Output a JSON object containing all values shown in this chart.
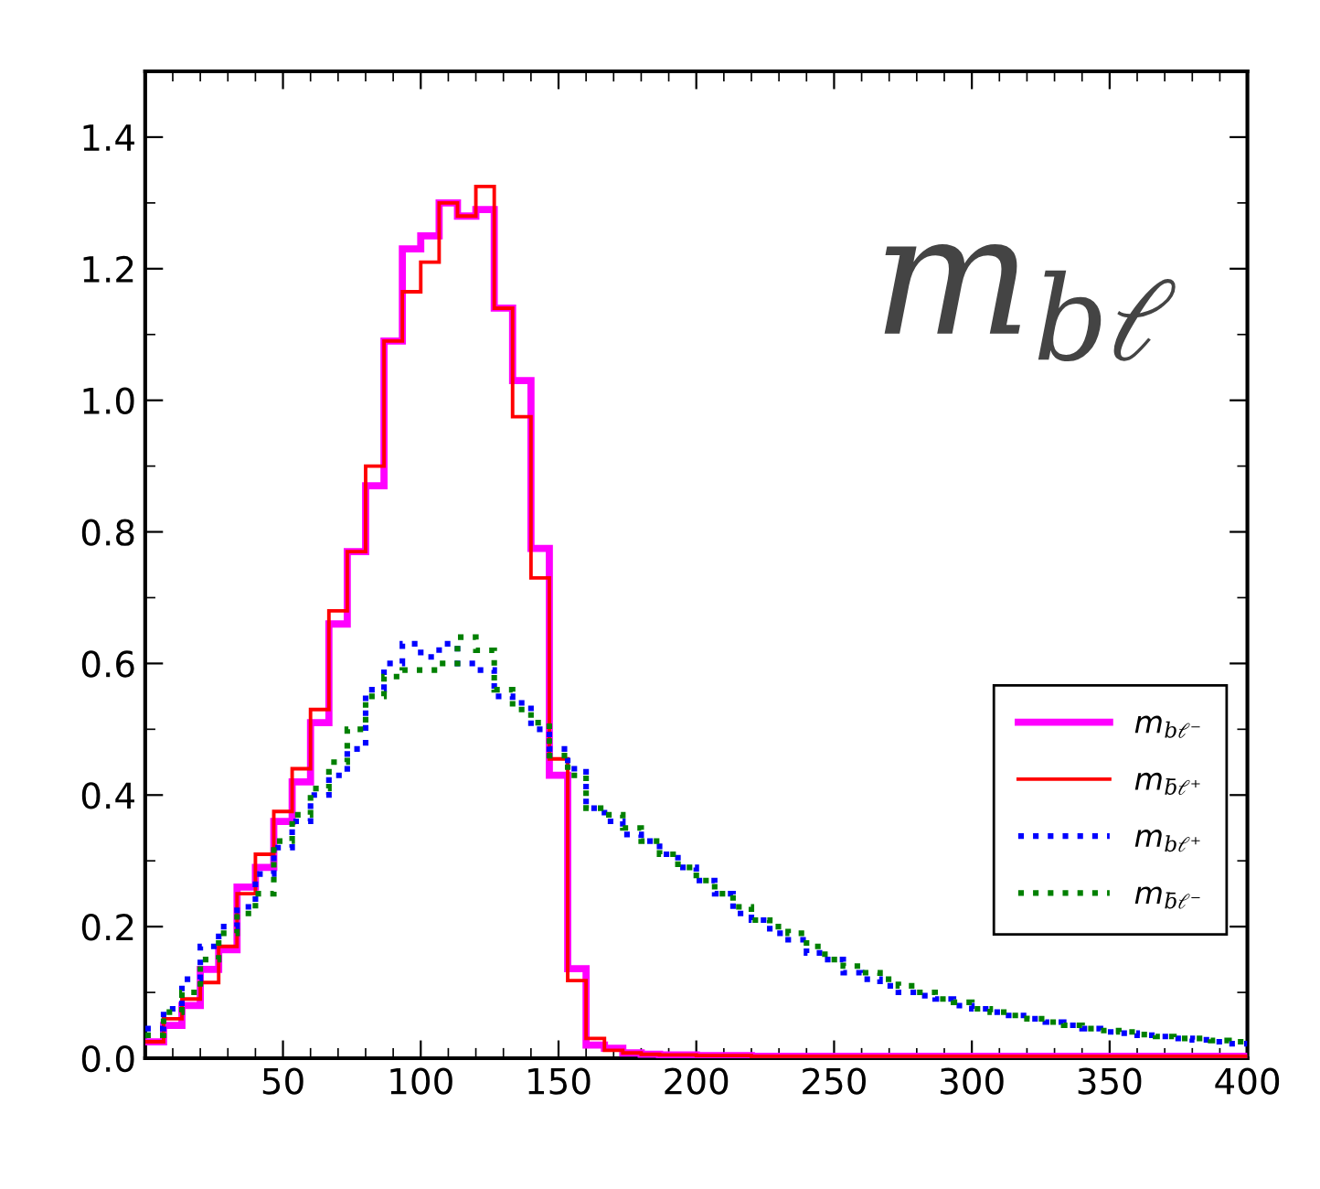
{
  "chart_data": {
    "type": "histogram",
    "bins": [
      0,
      6.67,
      13.33,
      20,
      26.67,
      33.33,
      40,
      46.67,
      53.33,
      60,
      66.67,
      73.33,
      80,
      86.67,
      93.33,
      100,
      106.67,
      113.33,
      120,
      126.67,
      133.33,
      140,
      146.67,
      153.33,
      160,
      166.67,
      173.33,
      180,
      186.67,
      193.33,
      200,
      206.67,
      213.33,
      220,
      226.67,
      233.33,
      240,
      246.67,
      253.33,
      260,
      266.67,
      273.33,
      280,
      286.67,
      293.33,
      300,
      306.67,
      313.33,
      320,
      326.67,
      333.33,
      340,
      346.67,
      353.33,
      360,
      366.67,
      373.33,
      380,
      386.67,
      393.33,
      400
    ],
    "series": [
      {
        "name": "m$_{bℓ⁻}$",
        "color": "#ff00ff",
        "line_style": "solid",
        "values": [
          0.025,
          0.05,
          0.08,
          0.135,
          0.165,
          0.26,
          0.29,
          0.36,
          0.42,
          0.51,
          0.66,
          0.77,
          0.87,
          1.09,
          1.23,
          1.25,
          1.3,
          1.28,
          1.29,
          1.14,
          1.03,
          0.775,
          0.43,
          0.136,
          0.02,
          0.015,
          0.008,
          0.006,
          0.005,
          0.005,
          0.004,
          0.004,
          0.004,
          0.003,
          0.003,
          0.003,
          0.003,
          0.003,
          0.003,
          0.003,
          0.003,
          0.003,
          0.003,
          0.003,
          0.003,
          0.003,
          0.003,
          0.003,
          0.003,
          0.003,
          0.003,
          0.003,
          0.003,
          0.003,
          0.003,
          0.003,
          0.003,
          0.003,
          0.003,
          0.003
        ]
      },
      {
        "name": "m$_{b̄ℓ⁺}$",
        "color": "#ff0000",
        "line_style": "solid",
        "values": [
          0.025,
          0.06,
          0.09,
          0.115,
          0.17,
          0.25,
          0.31,
          0.375,
          0.44,
          0.53,
          0.68,
          0.77,
          0.9,
          1.09,
          1.165,
          1.21,
          1.3,
          1.28,
          1.325,
          1.14,
          0.975,
          0.73,
          0.455,
          0.118,
          0.03,
          0.012,
          0.008,
          0.006,
          0.005,
          0.005,
          0.004,
          0.004,
          0.004,
          0.003,
          0.003,
          0.003,
          0.003,
          0.003,
          0.003,
          0.003,
          0.003,
          0.003,
          0.003,
          0.003,
          0.003,
          0.003,
          0.003,
          0.003,
          0.003,
          0.003,
          0.003,
          0.003,
          0.003,
          0.003,
          0.003,
          0.003,
          0.003,
          0.003,
          0.003,
          0.003
        ]
      },
      {
        "name": "m$_{bℓ⁺}$",
        "color": "#0000ff",
        "line_style": "dotted",
        "values": [
          0.045,
          0.075,
          0.12,
          0.17,
          0.2,
          0.23,
          0.28,
          0.32,
          0.36,
          0.4,
          0.43,
          0.47,
          0.56,
          0.6,
          0.63,
          0.61,
          0.63,
          0.6,
          0.59,
          0.55,
          0.54,
          0.5,
          0.47,
          0.44,
          0.38,
          0.36,
          0.34,
          0.33,
          0.31,
          0.29,
          0.27,
          0.25,
          0.22,
          0.21,
          0.19,
          0.18,
          0.16,
          0.15,
          0.13,
          0.12,
          0.11,
          0.1,
          0.095,
          0.09,
          0.08,
          0.075,
          0.07,
          0.065,
          0.06,
          0.055,
          0.05,
          0.045,
          0.04,
          0.038,
          0.035,
          0.033,
          0.03,
          0.028,
          0.025,
          0.022
        ]
      },
      {
        "name": "m$_{b̄ℓ⁻}$",
        "color": "#008000",
        "line_style": "dotted",
        "values": [
          0.035,
          0.07,
          0.1,
          0.15,
          0.19,
          0.22,
          0.25,
          0.33,
          0.37,
          0.41,
          0.45,
          0.5,
          0.55,
          0.58,
          0.59,
          0.59,
          0.6,
          0.64,
          0.62,
          0.56,
          0.53,
          0.51,
          0.46,
          0.43,
          0.38,
          0.37,
          0.35,
          0.33,
          0.31,
          0.29,
          0.27,
          0.25,
          0.23,
          0.21,
          0.2,
          0.19,
          0.17,
          0.15,
          0.14,
          0.13,
          0.12,
          0.11,
          0.1,
          0.09,
          0.085,
          0.075,
          0.07,
          0.065,
          0.06,
          0.055,
          0.05,
          0.045,
          0.042,
          0.04,
          0.036,
          0.033,
          0.03,
          0.03,
          0.027,
          0.025
        ]
      }
    ],
    "xlim": [
      0,
      400
    ],
    "ylim": [
      0,
      1.5
    ],
    "xticks": [
      50,
      100,
      150,
      200,
      250,
      300,
      350,
      400
    ],
    "yticks": [
      {
        "value": 0,
        "label": "0.0"
      },
      {
        "value": 0.2,
        "label": "0.2"
      },
      {
        "value": 0.4,
        "label": "0.4"
      },
      {
        "value": 0.6,
        "label": "0.6"
      },
      {
        "value": 0.8,
        "label": "0.8"
      },
      {
        "value": 1.0,
        "label": "1.0"
      },
      {
        "value": 1.2,
        "label": "1.2"
      },
      {
        "value": 1.4,
        "label": "1.4"
      }
    ],
    "annotations": [
      "m$_{bℓ}$"
    ],
    "legend": "bottom right",
    "grid": false
  }
}
